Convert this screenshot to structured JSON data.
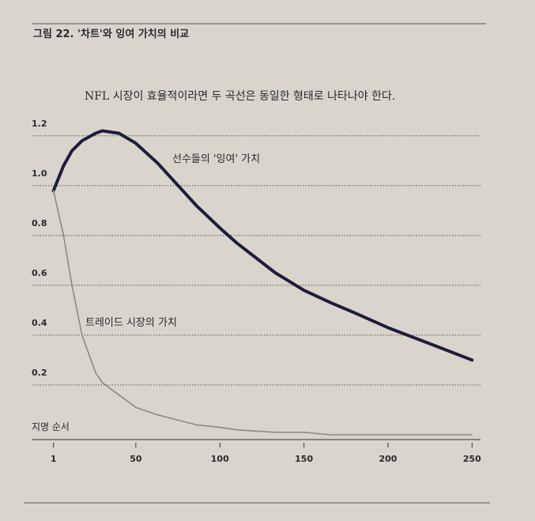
{
  "chart_data": {
    "type": "line",
    "title": "그림 22. '차트'와 잉여 가치의 비교",
    "subtitle": "NFL 시장이 효율적이라면 두 곡선은 동일한 형태로 나타나야 한다.",
    "x_label": "지명 순서",
    "annotations": [
      "선수들의 '잉여' 가치",
      "트레이드 시장의 가치"
    ],
    "x": [
      1,
      7,
      12,
      18,
      26,
      30,
      40,
      50,
      63,
      86,
      100,
      110,
      133,
      150,
      166,
      180,
      200,
      227,
      250
    ],
    "series": [
      {
        "color": "#1e1d3a",
        "values": [
          0.98,
          1.08,
          1.14,
          1.18,
          1.21,
          1.22,
          1.21,
          1.17,
          1.09,
          0.92,
          0.83,
          0.77,
          0.65,
          0.58,
          0.53,
          0.49,
          0.43,
          0.36,
          0.3
        ]
      },
      {
        "color": "#8c8a88",
        "values": [
          0.98,
          0.8,
          0.6,
          0.4,
          0.25,
          0.21,
          0.16,
          0.11,
          0.08,
          0.04,
          0.03,
          0.02,
          0.01,
          0.01,
          0,
          0,
          0,
          0,
          0
        ]
      }
    ],
    "xlim": [
      -12,
      255
    ],
    "xticks": [
      1,
      50,
      100,
      150,
      200,
      250
    ],
    "ylim": [
      0,
      1.25
    ],
    "yticks": [
      0.2,
      0.4,
      0.6,
      {
        "value": 0.8,
        "label": "0.8"
      },
      {
        "value": 1,
        "label": "1.0"
      },
      1.2
    ],
    "grid": true
  }
}
